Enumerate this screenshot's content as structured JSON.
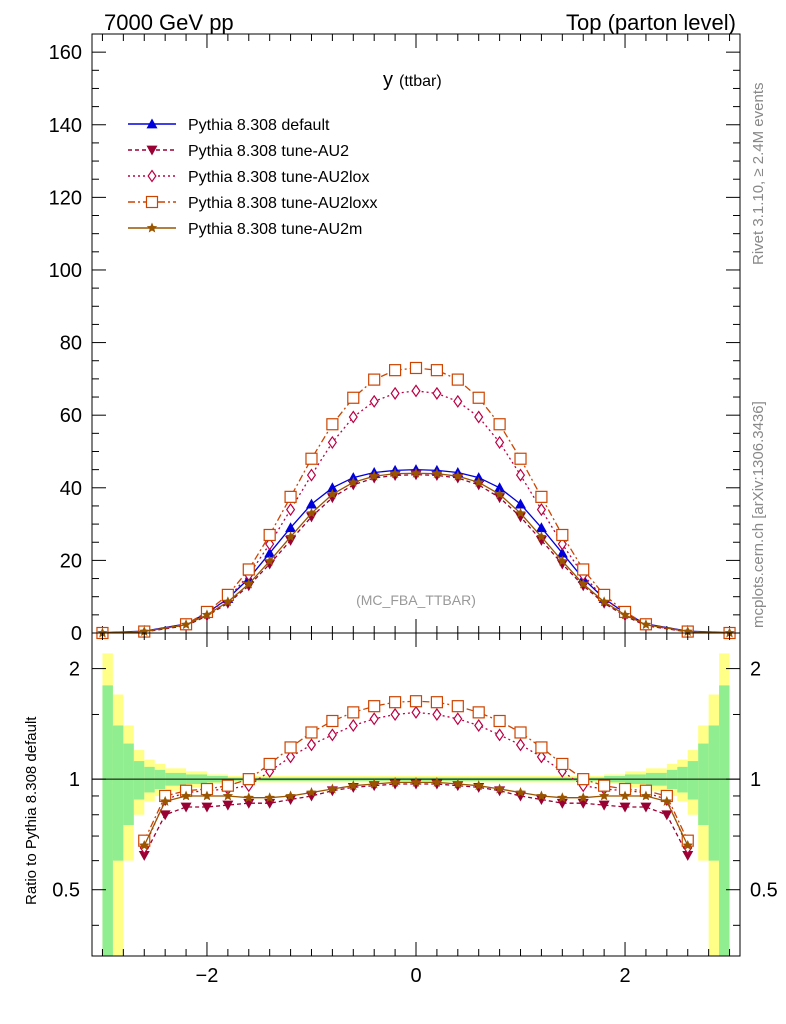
{
  "header": {
    "left_title": "7000 GeV pp",
    "right_title": "Top (parton level)",
    "plot_label_main": "y",
    "plot_label_sub": "(ttbar)",
    "analysis_tag": "(MC_FBA_TTBAR)",
    "side_text_top": "Rivet 3.1.10, ≥ 2.4M events",
    "side_text_bottom": "mcplots.cern.ch [arXiv:1306.3436]"
  },
  "ratio_ylabel": "Ratio to Pythia 8.308 default",
  "chart_data": [
    {
      "type": "line",
      "name": "main",
      "xlim": [
        -3.1,
        3.1
      ],
      "ylim": [
        0,
        165
      ],
      "x_ticks": [
        -2,
        0,
        2
      ],
      "y_ticks": [
        0,
        20,
        40,
        60,
        80,
        100,
        120,
        140,
        160
      ],
      "grid": false,
      "legend_placement": "top-left",
      "x": [
        -3.0,
        -2.6,
        -2.2,
        -2.0,
        -1.8,
        -1.6,
        -1.4,
        -1.2,
        -1.0,
        -0.8,
        -0.6,
        -0.4,
        -0.2,
        0.0,
        0.2,
        0.4,
        0.6,
        0.8,
        1.0,
        1.2,
        1.4,
        1.6,
        1.8,
        2.0,
        2.2,
        2.6,
        3.0
      ],
      "series": [
        {
          "name": "Pythia 8.308 default",
          "color": "#0000dd",
          "marker": "triangle-up",
          "dash": "solid",
          "values": [
            0.1,
            0.5,
            2.5,
            5.5,
            9.5,
            15.0,
            22.0,
            29.0,
            35.5,
            40.0,
            42.8,
            44.2,
            44.8,
            45.0,
            44.8,
            44.2,
            42.8,
            40.0,
            35.5,
            29.0,
            22.0,
            15.0,
            9.5,
            5.5,
            2.5,
            0.5,
            0.1
          ]
        },
        {
          "name": "Pythia 8.308 tune-AU2",
          "color": "#990033",
          "marker": "triangle-down",
          "dash": "4,3",
          "values": [
            0.0,
            0.3,
            2.0,
            4.7,
            8.2,
            13.0,
            19.0,
            25.5,
            32.0,
            37.3,
            40.8,
            42.7,
            43.4,
            43.6,
            43.4,
            42.7,
            40.8,
            37.3,
            32.0,
            25.5,
            19.0,
            13.0,
            8.2,
            4.7,
            2.0,
            0.3,
            0.0
          ]
        },
        {
          "name": "Pythia 8.308 tune-AU2lox",
          "color": "#bb0044",
          "marker": "diamond-open",
          "dash": "2,3",
          "values": [
            0.0,
            0.4,
            2.2,
            5.3,
            9.5,
            16.0,
            24.5,
            34.0,
            43.5,
            52.5,
            59.5,
            63.8,
            66.0,
            66.7,
            66.0,
            63.8,
            59.5,
            52.5,
            43.5,
            34.0,
            24.5,
            16.0,
            9.5,
            5.3,
            2.2,
            0.4,
            0.0
          ]
        },
        {
          "name": "Pythia 8.308 tune-AU2loxx",
          "color": "#cc4400",
          "marker": "square-open",
          "dash": "7,3,2,3",
          "values": [
            0.0,
            0.4,
            2.4,
            5.8,
            10.5,
            17.5,
            27.0,
            37.5,
            48.0,
            57.5,
            64.8,
            69.8,
            72.4,
            73.0,
            72.4,
            69.8,
            64.8,
            57.5,
            48.0,
            37.5,
            27.0,
            17.5,
            10.5,
            5.8,
            2.4,
            0.4,
            0.0
          ]
        },
        {
          "name": "Pythia 8.308 tune-AU2m",
          "color": "#995500",
          "marker": "star",
          "dash": "solid",
          "values": [
            0.0,
            0.4,
            2.3,
            5.0,
            8.6,
            13.5,
            19.8,
            26.5,
            33.0,
            38.2,
            41.5,
            43.2,
            43.9,
            44.0,
            43.9,
            43.2,
            41.5,
            38.2,
            33.0,
            26.5,
            19.8,
            13.5,
            8.6,
            5.0,
            2.3,
            0.4,
            0.0
          ]
        }
      ]
    },
    {
      "type": "line",
      "name": "ratio",
      "xlim": [
        -3.1,
        3.1
      ],
      "ylim": [
        0.33,
        2.5
      ],
      "log_y": true,
      "x_ticks": [
        -2,
        0,
        2
      ],
      "y_ticks": [
        0.5,
        1,
        2
      ],
      "reference_line": 1,
      "x": [
        -2.6,
        -2.4,
        -2.2,
        -2.0,
        -1.8,
        -1.6,
        -1.4,
        -1.2,
        -1.0,
        -0.8,
        -0.6,
        -0.4,
        -0.2,
        0.0,
        0.2,
        0.4,
        0.6,
        0.8,
        1.0,
        1.2,
        1.4,
        1.6,
        1.8,
        2.0,
        2.2,
        2.4,
        2.6
      ],
      "series": [
        {
          "name": "Pythia 8.308 tune-AU2",
          "color": "#990033",
          "marker": "triangle-down",
          "dash": "4,3",
          "values": [
            0.62,
            0.8,
            0.84,
            0.84,
            0.85,
            0.86,
            0.86,
            0.88,
            0.9,
            0.93,
            0.95,
            0.96,
            0.97,
            0.97,
            0.97,
            0.96,
            0.95,
            0.93,
            0.9,
            0.88,
            0.86,
            0.86,
            0.85,
            0.84,
            0.84,
            0.8,
            0.62
          ]
        },
        {
          "name": "Pythia 8.308 tune-AU2lox",
          "color": "#bb0044",
          "marker": "diamond-open",
          "dash": "2,3",
          "values": [
            0.65,
            0.88,
            0.92,
            0.93,
            0.94,
            0.96,
            1.05,
            1.15,
            1.24,
            1.32,
            1.4,
            1.46,
            1.5,
            1.52,
            1.5,
            1.46,
            1.4,
            1.32,
            1.24,
            1.15,
            1.05,
            0.96,
            0.94,
            0.93,
            0.92,
            0.88,
            0.65
          ]
        },
        {
          "name": "Pythia 8.308 tune-AU2loxx",
          "color": "#cc4400",
          "marker": "square-open",
          "dash": "7,3,2,3",
          "values": [
            0.68,
            0.9,
            0.93,
            0.94,
            0.96,
            1.0,
            1.1,
            1.22,
            1.34,
            1.44,
            1.52,
            1.58,
            1.62,
            1.63,
            1.62,
            1.58,
            1.52,
            1.44,
            1.34,
            1.22,
            1.1,
            1.0,
            0.96,
            0.94,
            0.93,
            0.9,
            0.68
          ]
        },
        {
          "name": "Pythia 8.308 tune-AU2m",
          "color": "#995500",
          "marker": "star",
          "dash": "solid",
          "values": [
            0.66,
            0.87,
            0.9,
            0.9,
            0.9,
            0.89,
            0.89,
            0.9,
            0.92,
            0.94,
            0.96,
            0.97,
            0.98,
            0.98,
            0.98,
            0.97,
            0.96,
            0.94,
            0.92,
            0.9,
            0.89,
            0.89,
            0.9,
            0.9,
            0.9,
            0.87,
            0.66
          ]
        }
      ],
      "uncertainty_bands": {
        "green_color": "#90ee90",
        "yellow_color": "#ffff88",
        "x_edges": [
          -3.0,
          -2.9,
          -2.8,
          -2.7,
          -2.6,
          -2.5,
          -2.4,
          -2.2,
          -2.0,
          -1.8,
          1.8,
          2.0,
          2.2,
          2.4,
          2.5,
          2.6,
          2.7,
          2.8,
          2.9,
          3.0
        ],
        "green_half_width": [
          0.8,
          0.4,
          0.25,
          0.12,
          0.08,
          0.06,
          0.04,
          0.03,
          0.02,
          0.01,
          0.02,
          0.03,
          0.04,
          0.06,
          0.08,
          0.12,
          0.25,
          0.4,
          0.8
        ],
        "yellow_half_width": [
          1.2,
          0.7,
          0.4,
          0.2,
          0.13,
          0.1,
          0.07,
          0.05,
          0.03,
          0.02,
          0.03,
          0.05,
          0.07,
          0.1,
          0.13,
          0.2,
          0.4,
          0.7,
          1.2
        ]
      }
    }
  ]
}
